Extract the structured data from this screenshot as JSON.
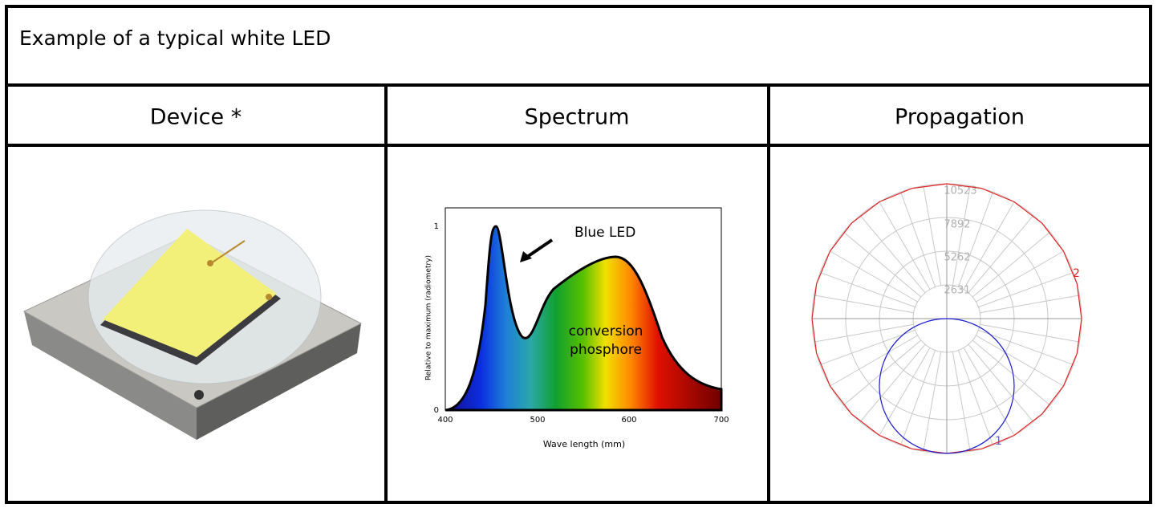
{
  "header": {
    "title": "Example of a typical white LED"
  },
  "table": {
    "columns": [
      "Device *",
      "Spectrum",
      "Propagation"
    ]
  },
  "spectrum": {
    "annotations": [
      "Blue LED",
      "conversion",
      "phosphore"
    ],
    "y_label": "Relative to maximum (radiometry)",
    "x_label": "Wave length (mm)",
    "x_ticks": [
      400,
      500,
      600,
      700
    ],
    "y_ticks": [
      0,
      1
    ]
  },
  "propagation": {
    "ring_labels": [
      10523,
      7892,
      5262,
      2631
    ],
    "curve_labels": [
      "2",
      "1"
    ]
  }
}
